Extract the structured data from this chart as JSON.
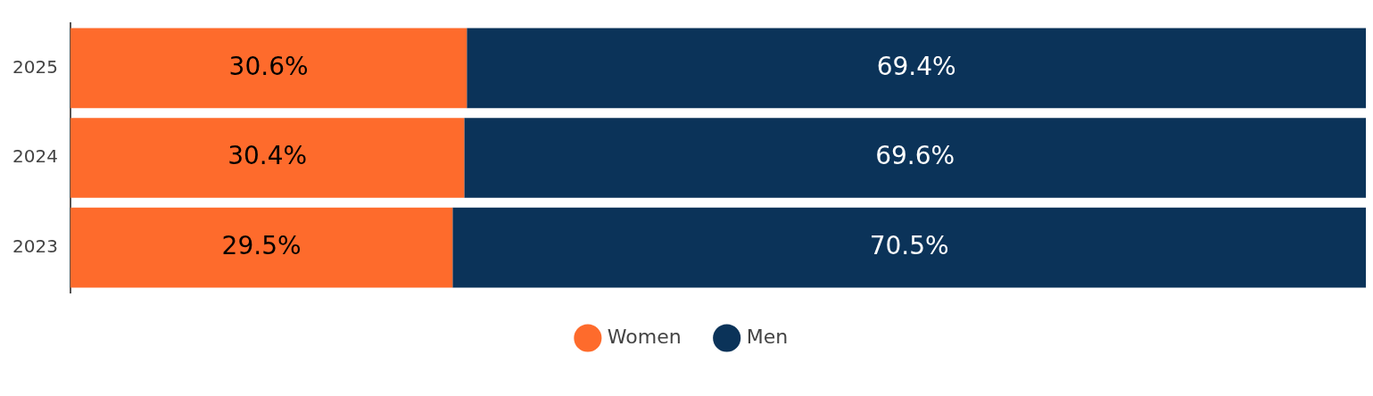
{
  "chart_data": {
    "type": "bar",
    "orientation": "horizontal",
    "stacked": true,
    "categories": [
      "2025",
      "2024",
      "2023"
    ],
    "series": [
      {
        "name": "Women",
        "color": "#fe6b2c",
        "values": [
          30.6,
          30.4,
          29.5
        ],
        "value_labels": [
          "30.6%",
          "30.4%",
          "29.5%"
        ]
      },
      {
        "name": "Men",
        "color": "#0b3359",
        "values": [
          69.4,
          69.6,
          70.5
        ],
        "value_labels": [
          "69.4%",
          "69.6%",
          "70.5%"
        ]
      }
    ],
    "xlim": [
      0,
      100
    ],
    "legend": "bottom",
    "marker": "circle",
    "tick_labels": "y"
  }
}
